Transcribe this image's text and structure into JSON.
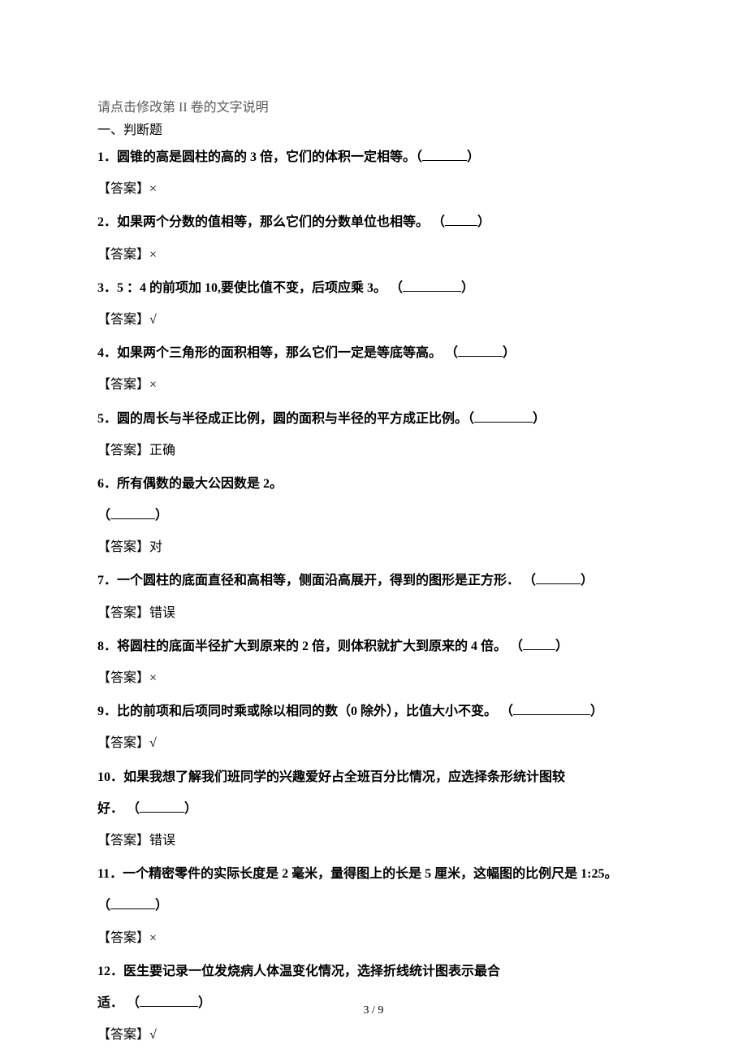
{
  "instruction": "请点击修改第 II 卷的文字说明",
  "section_title": "一、判断题",
  "questions": [
    {
      "num": "1．",
      "text_a": "圆锥的高是圆柱的高的 3 倍，它们的体积一定相等。（",
      "blank_class": "blank-med",
      "text_b": "）",
      "answer": "×"
    },
    {
      "num": "2．",
      "text_a": "如果两个分数的值相等，那么它们的分数单位也相等。    （",
      "blank_class": "blank-short",
      "text_b": "）",
      "answer": "×"
    },
    {
      "num": "3．",
      "text_a": "5 ：4 的前项加 10,要使比值不变，后项应乘 3。   （",
      "blank_class": "blank-long",
      "text_b": "）",
      "answer": "√"
    },
    {
      "num": "4．",
      "text_a": "如果两个三角形的面积相等，那么它们一定是等底等高。  （",
      "blank_class": "blank-med",
      "text_b": "）",
      "answer": "×"
    },
    {
      "num": "5．",
      "text_a": "圆的周长与半径成正比例，圆的面积与半径的平方成正比例。（",
      "blank_class": "blank-long",
      "text_b": "）",
      "answer": "正确"
    },
    {
      "num": "6．",
      "text_a": "所有偶数的最大公因数是 2。",
      "line2_a": "（",
      "blank_class": "blank-med",
      "line2_b": "）",
      "answer": "对"
    },
    {
      "num": "7．",
      "text_a": "一个圆柱的底面直径和高相等，侧面沿高展开，得到的图形是正方形．  （",
      "blank_class": "blank-med",
      "text_b": "）",
      "answer": "错误"
    },
    {
      "num": "8．",
      "text_a": "将圆柱的底面半径扩大到原来的 2 倍，则体积就扩大到原来的 4 倍。  （",
      "blank_class": "blank-short",
      "text_b": "）",
      "answer": "×"
    },
    {
      "num": "9．",
      "text_a": "比的前项和后项同时乘或除以相同的数（0 除外），比值大小不变。  （",
      "blank_class": "blank-xlong",
      "text_b": "）",
      "answer": "√"
    },
    {
      "num": "10．",
      "text_a": "如果我想了解我们班同学的兴趣爱好占全班百分比情况，应选择条形统计图较",
      "line2_a": "好．  （",
      "blank_class": "blank-med",
      "line2_b": "）",
      "answer": "错误"
    },
    {
      "num": "11．",
      "text_a": "一个精密零件的实际长度是 2 毫米，量得图上的长是 5 厘米，这幅图的比例尺是 1:25。",
      "line2_a": "（",
      "blank_class": "blank-med",
      "line2_b": "）",
      "answer": "×"
    },
    {
      "num": "12．",
      "text_a": "医生要记录一位发烧病人体温变化情况，选择折线统计图表示最合",
      "line2_a": "适．  （",
      "blank_class": "blank-long",
      "line2_b": "）",
      "answer": "√"
    }
  ],
  "answer_label": "【答案】",
  "page_num": "3 / 9"
}
